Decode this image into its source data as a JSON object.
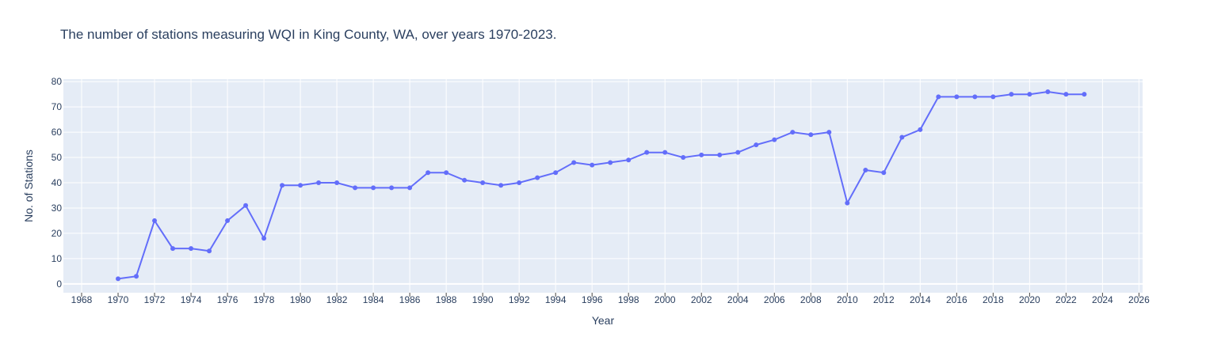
{
  "chart_data": {
    "type": "line",
    "title": "The number of stations measuring WQI in King County, WA, over years 1970-2023.",
    "xlabel": "Year",
    "ylabel": "No. of Stations",
    "xlim": [
      1967,
      2026.2
    ],
    "ylim": [
      -3.5,
      81
    ],
    "x_ticks": [
      1968,
      1970,
      1972,
      1974,
      1976,
      1978,
      1980,
      1982,
      1984,
      1986,
      1988,
      1990,
      1992,
      1994,
      1996,
      1998,
      2000,
      2002,
      2004,
      2006,
      2008,
      2010,
      2012,
      2014,
      2016,
      2018,
      2020,
      2022,
      2024,
      2026
    ],
    "y_ticks": [
      0,
      10,
      20,
      30,
      40,
      50,
      60,
      70,
      80
    ],
    "grid": true,
    "line_color": "#636efa",
    "plot_bg": "#e5ecf6",
    "series": [
      {
        "x": [
          1970,
          1971,
          1972,
          1973,
          1974,
          1975,
          1976,
          1977,
          1978,
          1979,
          1980,
          1981,
          1982,
          1983,
          1984,
          1985,
          1986,
          1987,
          1988,
          1989,
          1990,
          1991,
          1992,
          1993,
          1994,
          1995,
          1996,
          1997,
          1998,
          1999,
          2000,
          2001,
          2002,
          2003,
          2004,
          2005,
          2006,
          2007,
          2008,
          2009,
          2010,
          2011,
          2012,
          2013,
          2014,
          2015,
          2016,
          2017,
          2018,
          2019,
          2020,
          2021,
          2022,
          2023
        ],
        "y": [
          2,
          3,
          25,
          14,
          14,
          13,
          25,
          31,
          18,
          39,
          39,
          40,
          40,
          38,
          38,
          38,
          38,
          44,
          44,
          41,
          40,
          39,
          40,
          42,
          44,
          48,
          47,
          48,
          49,
          52,
          52,
          50,
          51,
          51,
          52,
          55,
          57,
          60,
          59,
          60,
          32,
          45,
          44,
          58,
          61,
          74,
          74,
          74,
          74,
          75,
          75,
          76,
          75,
          75
        ]
      }
    ]
  }
}
